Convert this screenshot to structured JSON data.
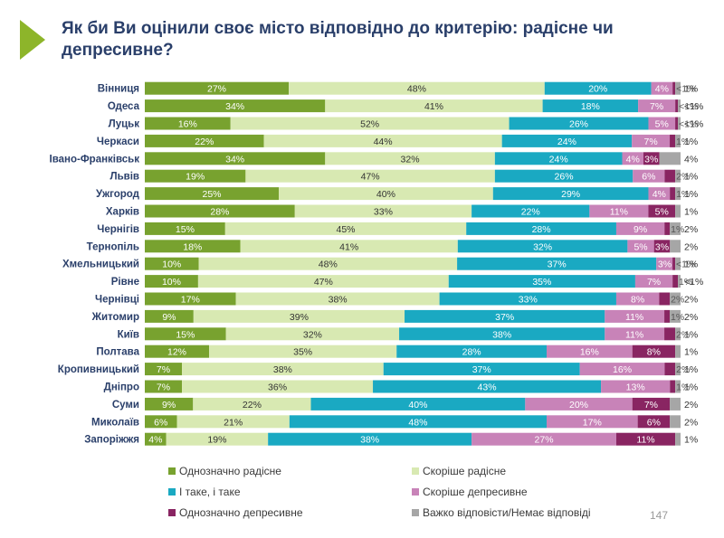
{
  "title": "Як би Ви оцінили своє місто відповідно до критерію: радісне чи депресивне?",
  "page_number": "147",
  "colors": [
    "#78a22f",
    "#d8e9b2",
    "#1aa9c2",
    "#c883b8",
    "#892562",
    "#a6a6a6"
  ],
  "chart_data": {
    "type": "bar",
    "orientation": "horizontal",
    "stacked": "100%",
    "categories": [
      "Вінниця",
      "Одеса",
      "Луцьк",
      "Черкаси",
      "Івано-Франківськ",
      "Львів",
      "Ужгород",
      "Харків",
      "Чернігів",
      "Тернопіль",
      "Хмельницький",
      "Рівне",
      "Чернівці",
      "Житомир",
      "Київ",
      "Полтава",
      "Кропивницький",
      "Дніпро",
      "Суми",
      "Миколаїв",
      "Запоріжжя"
    ],
    "series": [
      {
        "name": "Однозначно радісне",
        "values": [
          27,
          34,
          16,
          22,
          34,
          19,
          25,
          28,
          15,
          18,
          10,
          10,
          17,
          9,
          15,
          12,
          7,
          7,
          9,
          6,
          4
        ]
      },
      {
        "name": "Скоріше радісне",
        "values": [
          48,
          41,
          52,
          44,
          32,
          47,
          40,
          33,
          45,
          41,
          48,
          47,
          38,
          39,
          32,
          35,
          38,
          36,
          22,
          21,
          19
        ]
      },
      {
        "name": "І таке, і таке",
        "values": [
          20,
          18,
          26,
          24,
          24,
          26,
          29,
          22,
          28,
          32,
          37,
          35,
          33,
          37,
          38,
          28,
          37,
          43,
          40,
          48,
          38
        ]
      },
      {
        "name": "Скоріше депресивне",
        "values": [
          4,
          7,
          5,
          7,
          4,
          6,
          4,
          11,
          9,
          5,
          3,
          7,
          8,
          11,
          11,
          16,
          16,
          13,
          20,
          17,
          27
        ]
      },
      {
        "name": "Однозначно депресивне",
        "values": [
          0.5,
          0.5,
          0.5,
          1,
          3,
          2,
          1,
          5,
          1,
          3,
          0.5,
          1,
          2,
          1,
          2,
          8,
          2,
          1,
          7,
          6,
          11
        ]
      },
      {
        "name": "Важко відповісти/Немає відповіді",
        "values": [
          1,
          0.5,
          0.5,
          1,
          4,
          1,
          1,
          1,
          2,
          2,
          1,
          0.5,
          2,
          2,
          1,
          1,
          1,
          1,
          2,
          2,
          1
        ]
      }
    ],
    "labels": [
      [
        "27%",
        "48%",
        "20%",
        "4%",
        "<1%",
        "1%"
      ],
      [
        "34%",
        "41%",
        "18%",
        "7%",
        "<1%",
        "<1%"
      ],
      [
        "16%",
        "52%",
        "26%",
        "5%",
        "<1%",
        "<1%"
      ],
      [
        "22%",
        "44%",
        "24%",
        "7%",
        "1%",
        "1%"
      ],
      [
        "34%",
        "32%",
        "24%",
        "4%",
        "3%",
        "4%"
      ],
      [
        "19%",
        "47%",
        "26%",
        "6%",
        "2%",
        "1%"
      ],
      [
        "25%",
        "40%",
        "29%",
        "4%",
        "1%",
        "1%"
      ],
      [
        "28%",
        "33%",
        "22%",
        "11%",
        "5%",
        "1%"
      ],
      [
        "15%",
        "45%",
        "28%",
        "9%",
        "1%",
        "2%"
      ],
      [
        "18%",
        "41%",
        "32%",
        "5%",
        "3%",
        "2%"
      ],
      [
        "10%",
        "48%",
        "37%",
        "3%",
        "<1%",
        "1%"
      ],
      [
        "10%",
        "47%",
        "35%",
        "7%",
        "1%",
        "<1%"
      ],
      [
        "17%",
        "38%",
        "33%",
        "8%",
        "2%",
        "2%"
      ],
      [
        "9%",
        "39%",
        "37%",
        "11%",
        "1%",
        "2%"
      ],
      [
        "15%",
        "32%",
        "38%",
        "11%",
        "2%",
        "1%"
      ],
      [
        "12%",
        "35%",
        "28%",
        "16%",
        "8%",
        "1%"
      ],
      [
        "7%",
        "38%",
        "37%",
        "16%",
        "2%",
        "1%"
      ],
      [
        "7%",
        "36%",
        "43%",
        "13%",
        "1%",
        "1%"
      ],
      [
        "9%",
        "22%",
        "40%",
        "20%",
        "7%",
        "2%"
      ],
      [
        "6%",
        "21%",
        "48%",
        "17%",
        "6%",
        "2%"
      ],
      [
        "4%",
        "19%",
        "38%",
        "27%",
        "11%",
        "1%"
      ]
    ],
    "xlim": [
      0,
      100
    ],
    "legend_position": "bottom",
    "grid": false
  }
}
